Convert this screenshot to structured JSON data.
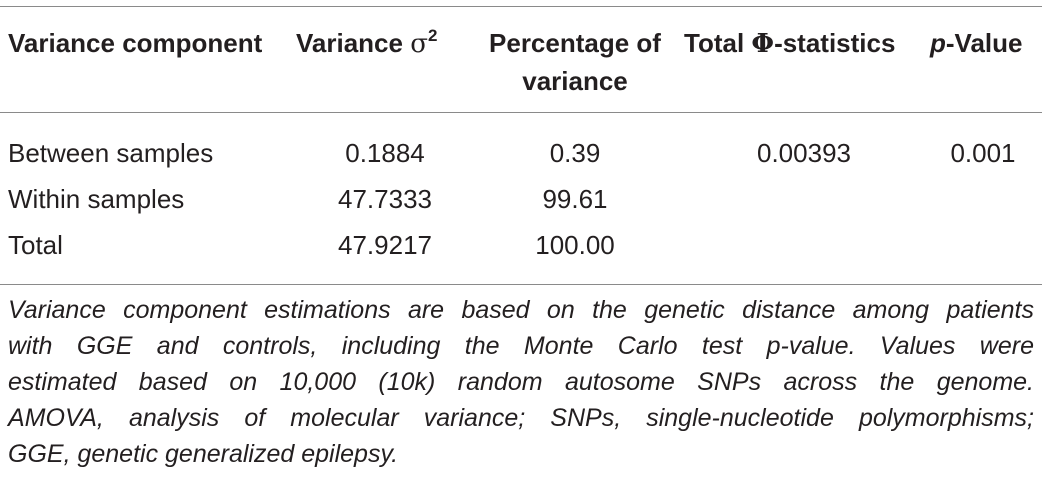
{
  "table": {
    "headers": {
      "component": "Variance component",
      "variance_prefix": "Variance ",
      "variance_symbol": "σ",
      "variance_exp": "2",
      "percentage_line1": "Percentage of",
      "percentage_line2": "variance",
      "phi_prefix": "Total ",
      "phi_symbol": "Φ",
      "phi_suffix": "-statistics",
      "pvalue_italic": "p",
      "pvalue_suffix": "-Value"
    },
    "rows": [
      {
        "component": "Between samples",
        "variance": "0.1884",
        "percentage": "0.39",
        "phi": "0.00393",
        "pvalue": "0.001"
      },
      {
        "component": "Within samples",
        "variance": "47.7333",
        "percentage": "99.61",
        "phi": "",
        "pvalue": ""
      },
      {
        "component": "Total",
        "variance": "47.9217",
        "percentage": "100.00",
        "phi": "",
        "pvalue": ""
      }
    ]
  },
  "footnote": {
    "line1": "Variance component estimations are based on the genetic distance among patients",
    "line2": "with GGE and controls, including the Monte Carlo test p-value. Values were",
    "line3": "estimated based on 10,000 (10k) random autosome SNPs across the genome.",
    "line4": "AMOVA, analysis of molecular variance; SNPs, single-nucleotide polymorphisms;",
    "line5": "GGE, genetic generalized epilepsy."
  }
}
